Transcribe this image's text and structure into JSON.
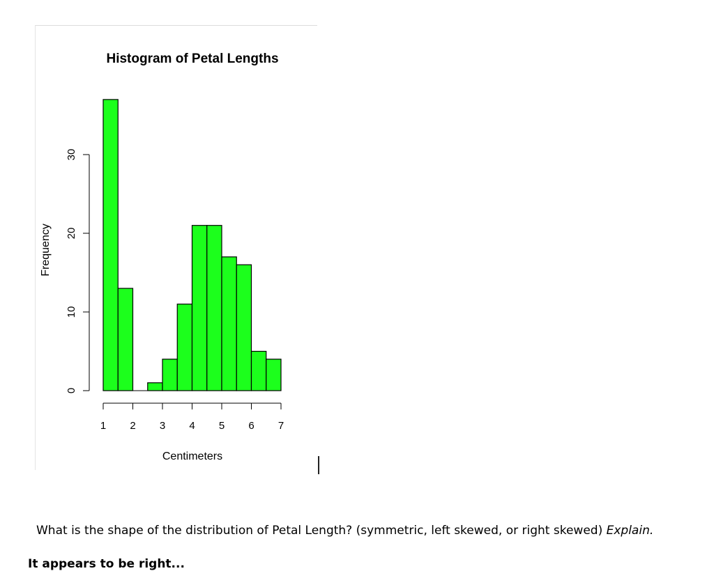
{
  "chart_data": {
    "type": "bar",
    "title": "Histogram of Petal Lengths",
    "xlabel": "Centimeters",
    "ylabel": "Frequency",
    "bins": [
      {
        "start": 1.0,
        "end": 1.5,
        "count": 37
      },
      {
        "start": 1.5,
        "end": 2.0,
        "count": 13
      },
      {
        "start": 2.0,
        "end": 2.5,
        "count": 0
      },
      {
        "start": 2.5,
        "end": 3.0,
        "count": 1
      },
      {
        "start": 3.0,
        "end": 3.5,
        "count": 4
      },
      {
        "start": 3.5,
        "end": 4.0,
        "count": 11
      },
      {
        "start": 4.0,
        "end": 4.5,
        "count": 21
      },
      {
        "start": 4.5,
        "end": 5.0,
        "count": 21
      },
      {
        "start": 5.0,
        "end": 5.5,
        "count": 17
      },
      {
        "start": 5.5,
        "end": 6.0,
        "count": 16
      },
      {
        "start": 6.0,
        "end": 6.5,
        "count": 5
      },
      {
        "start": 6.5,
        "end": 7.0,
        "count": 4
      }
    ],
    "x_ticks": [
      "1",
      "2",
      "3",
      "4",
      "5",
      "6",
      "7"
    ],
    "y_ticks": [
      "0",
      "10",
      "20",
      "30"
    ],
    "xlim": [
      1,
      7
    ],
    "ylim": [
      0,
      37
    ],
    "bar_color": "#1cff1c",
    "bar_edge_color": "#000000",
    "grid": false,
    "legend": "none"
  },
  "question": {
    "text": "What is the shape of the distribution of Petal Length? (symmetric, left skewed, or right skewed) ",
    "emphasis": "Explain."
  },
  "answer_partial": "It appears to be right..."
}
